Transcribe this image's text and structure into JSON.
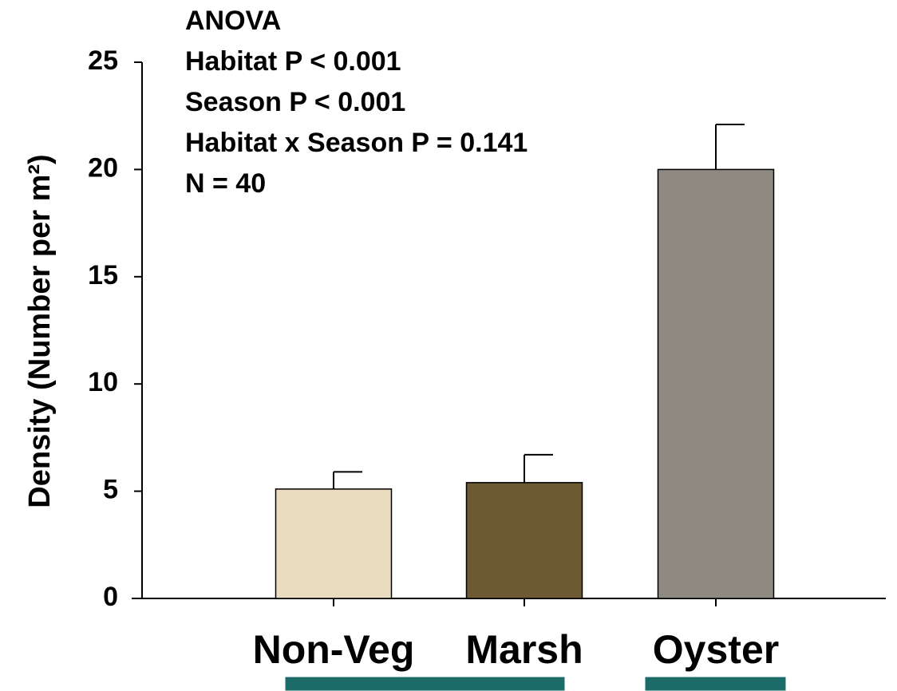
{
  "chart_data": {
    "type": "bar",
    "ylabel": "Density (Number per m²)",
    "categories": [
      "Non-Veg",
      "Marsh",
      "Oyster"
    ],
    "values": [
      5.1,
      5.4,
      20.0
    ],
    "errors": [
      0.8,
      1.3,
      2.1
    ],
    "colors": [
      "#e9dcbf",
      "#6b5a34",
      "#8f8a80"
    ],
    "ylim": [
      0,
      25
    ],
    "yticks": [
      0,
      5,
      10,
      15,
      20,
      25
    ],
    "annotations": [
      "ANOVA",
      "Habitat P < 0.001",
      "Season P < 0.001",
      "Habitat x Season P = 0.141",
      "N = 40"
    ]
  }
}
